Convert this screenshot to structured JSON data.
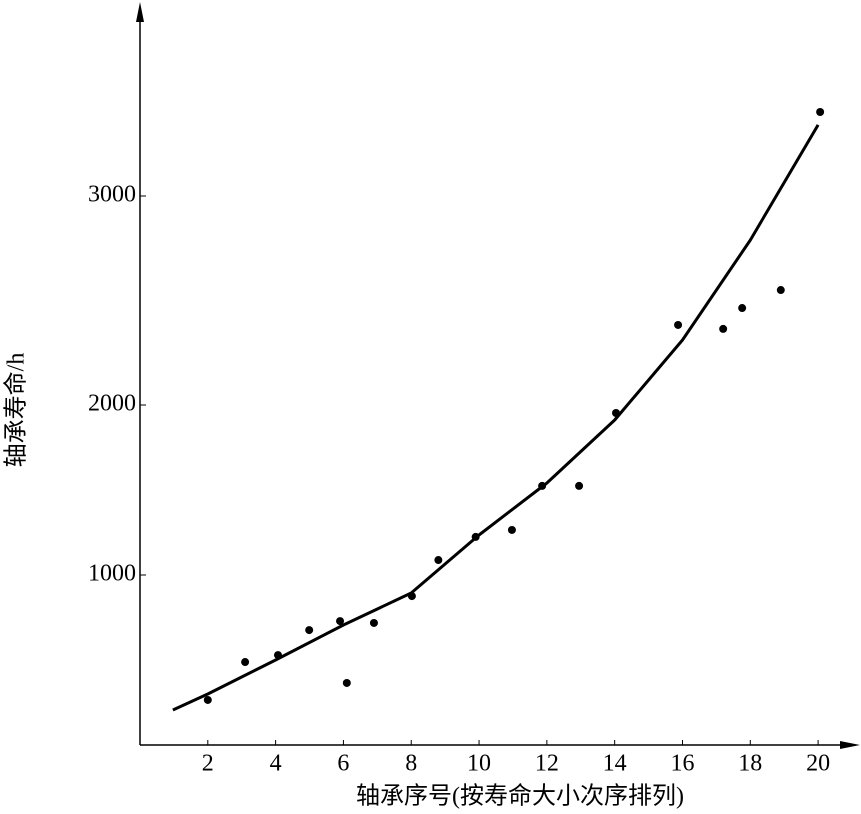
{
  "chart_data": {
    "type": "scatter",
    "x_label": "轴承序号(按寿命大小次序排列)",
    "y_label": "轴承寿命/h",
    "xlim": [
      0,
      21
    ],
    "xticks": [
      2,
      4,
      6,
      8,
      10,
      12,
      14,
      16,
      18,
      20
    ],
    "ylim": [
      0,
      3890
    ],
    "yticks": [
      1000,
      2000,
      3000
    ],
    "color": "#000000",
    "series": [
      {
        "type": "scatter",
        "x": [
          2.0,
          3.1,
          4.07,
          4.99,
          5.9,
          6.1,
          6.9,
          8.02,
          8.8,
          9.9,
          10.97,
          11.86,
          12.95,
          14.04,
          15.87,
          17.2,
          17.76,
          18.9,
          20.06
        ],
        "values": [
          265,
          488,
          529,
          676,
          729,
          365,
          718,
          876,
          1088,
          1224,
          1265,
          1524,
          1524,
          1953,
          2383,
          2364,
          2464,
          2550,
          3402
        ]
      },
      {
        "type": "line",
        "x": [
          0.97,
          2,
          4,
          6,
          8,
          10,
          12,
          14,
          16,
          18,
          20
        ],
        "values": [
          206,
          300,
          500,
          706,
          894,
          1235,
          1541,
          1912,
          2311,
          2789,
          3340
        ]
      }
    ]
  }
}
